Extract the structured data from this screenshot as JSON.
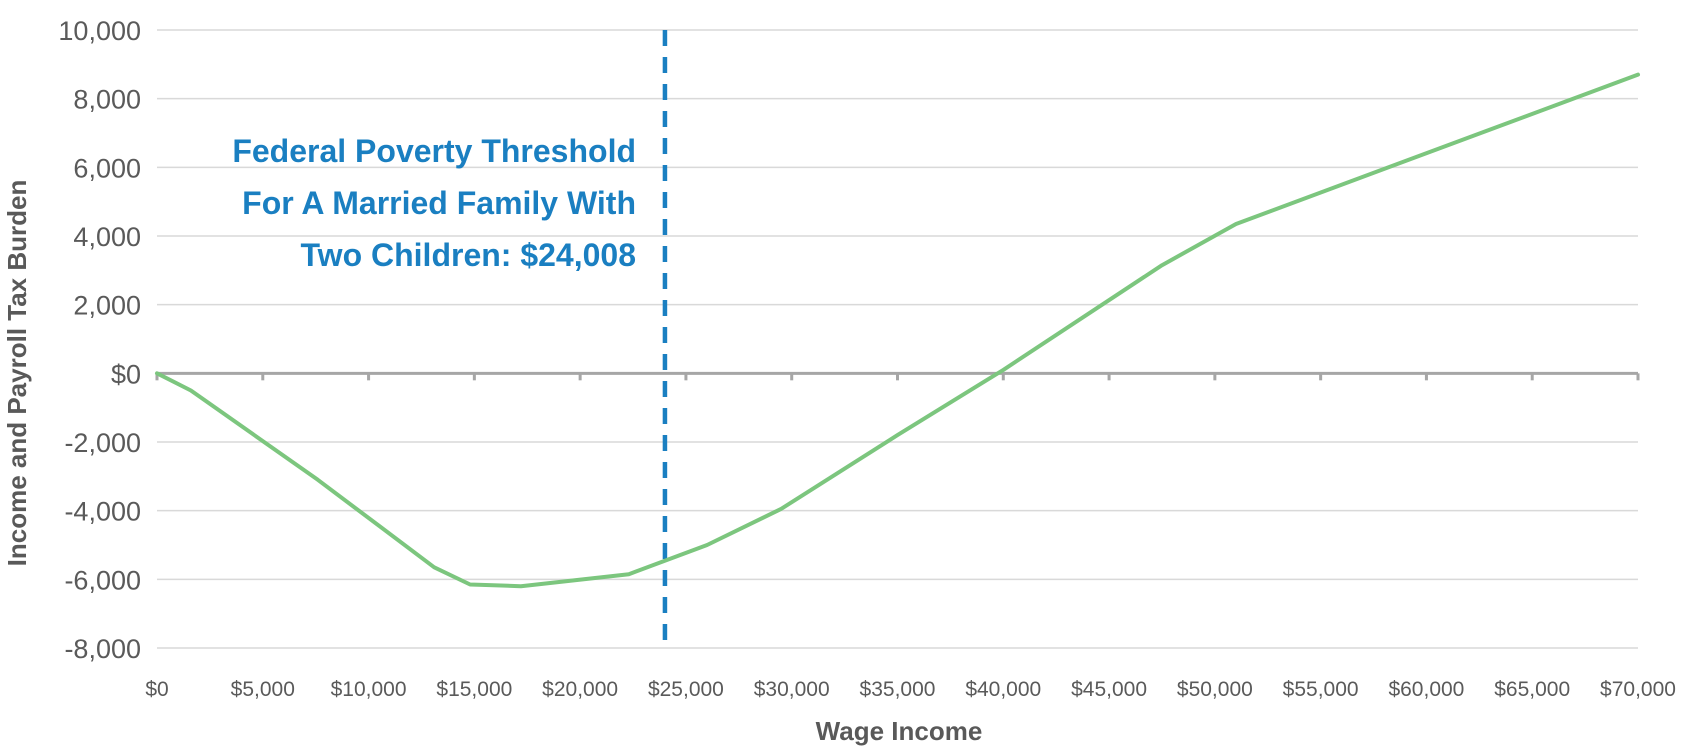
{
  "chart_data": {
    "type": "line",
    "xlabel": "Wage Income",
    "ylabel": "Income and Payroll Tax Burden",
    "xlim": [
      0,
      70000
    ],
    "ylim": [
      -8000,
      10000
    ],
    "x_ticks": [
      {
        "value": 0,
        "label": "$0"
      },
      {
        "value": 5000,
        "label": "$5,000"
      },
      {
        "value": 10000,
        "label": "$10,000"
      },
      {
        "value": 15000,
        "label": "$15,000"
      },
      {
        "value": 20000,
        "label": "$20,000"
      },
      {
        "value": 25000,
        "label": "$25,000"
      },
      {
        "value": 30000,
        "label": "$30,000"
      },
      {
        "value": 35000,
        "label": "$35,000"
      },
      {
        "value": 40000,
        "label": "$40,000"
      },
      {
        "value": 45000,
        "label": "$45,000"
      },
      {
        "value": 50000,
        "label": "$50,000"
      },
      {
        "value": 55000,
        "label": "$55,000"
      },
      {
        "value": 60000,
        "label": "$60,000"
      },
      {
        "value": 65000,
        "label": "$65,000"
      },
      {
        "value": 70000,
        "label": "$70,000"
      }
    ],
    "y_ticks": [
      {
        "value": 10000,
        "label": "10,000"
      },
      {
        "value": 8000,
        "label": "8,000"
      },
      {
        "value": 6000,
        "label": "6,000"
      },
      {
        "value": 4000,
        "label": "4,000"
      },
      {
        "value": 2000,
        "label": "2,000"
      },
      {
        "value": 0,
        "label": "$0"
      },
      {
        "value": -2000,
        "label": "-2,000"
      },
      {
        "value": -4000,
        "label": "-4,000"
      },
      {
        "value": -6000,
        "label": "-6,000"
      },
      {
        "value": -8000,
        "label": "-8,000"
      }
    ],
    "grid": true,
    "legend": "none",
    "series": [
      {
        "color": "#7cc67e",
        "x": [
          0,
          1600,
          7600,
          13100,
          14800,
          17200,
          22300,
          26000,
          29500,
          35000,
          40000,
          47500,
          51000,
          70000
        ],
        "y": [
          0,
          -500,
          -3100,
          -5650,
          -6150,
          -6200,
          -5850,
          -5000,
          -3950,
          -1800,
          100,
          3150,
          4350,
          8700
        ]
      }
    ],
    "reference_line": {
      "x": 24008,
      "color": "#1a7fc1",
      "style": "dashed"
    },
    "annotation": {
      "lines": [
        "Federal Poverty Threshold",
        "For A Married Family With",
        "Two Children: $24,008"
      ],
      "color": "#1a7fc1"
    },
    "colors": {
      "grid": "#d9d9d9",
      "zero_axis": "#a6a6a6",
      "tick_text": "#5a5a5a",
      "title_text": "#595959"
    }
  }
}
